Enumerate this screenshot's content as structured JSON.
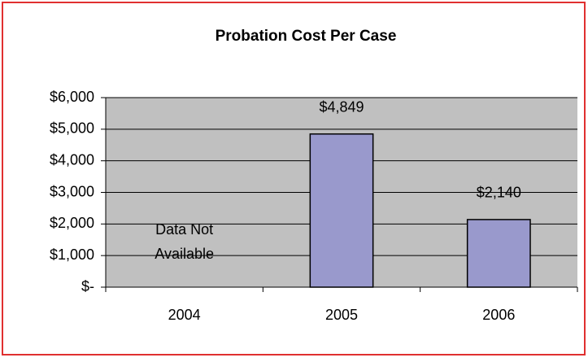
{
  "chart_data": {
    "type": "bar",
    "title": "Probation Cost Per Case",
    "categories": [
      "2004",
      "2005",
      "2006"
    ],
    "values": [
      null,
      4849,
      2140
    ],
    "value_labels": [
      null,
      "$4,849",
      "$2,140"
    ],
    "color": "#9999cc",
    "annotation": [
      "Data Not",
      "Available"
    ],
    "ylim": [
      0,
      6000
    ],
    "yticks": [
      {
        "value": 0,
        "label": "$-"
      },
      {
        "value": 1000,
        "label": "$1,000"
      },
      {
        "value": 2000,
        "label": "$2,000"
      },
      {
        "value": 3000,
        "label": "$3,000"
      },
      {
        "value": 4000,
        "label": "$4,000"
      },
      {
        "value": 5000,
        "label": "$5,000"
      },
      {
        "value": 6000,
        "label": "$6,000"
      }
    ],
    "grid": true
  }
}
